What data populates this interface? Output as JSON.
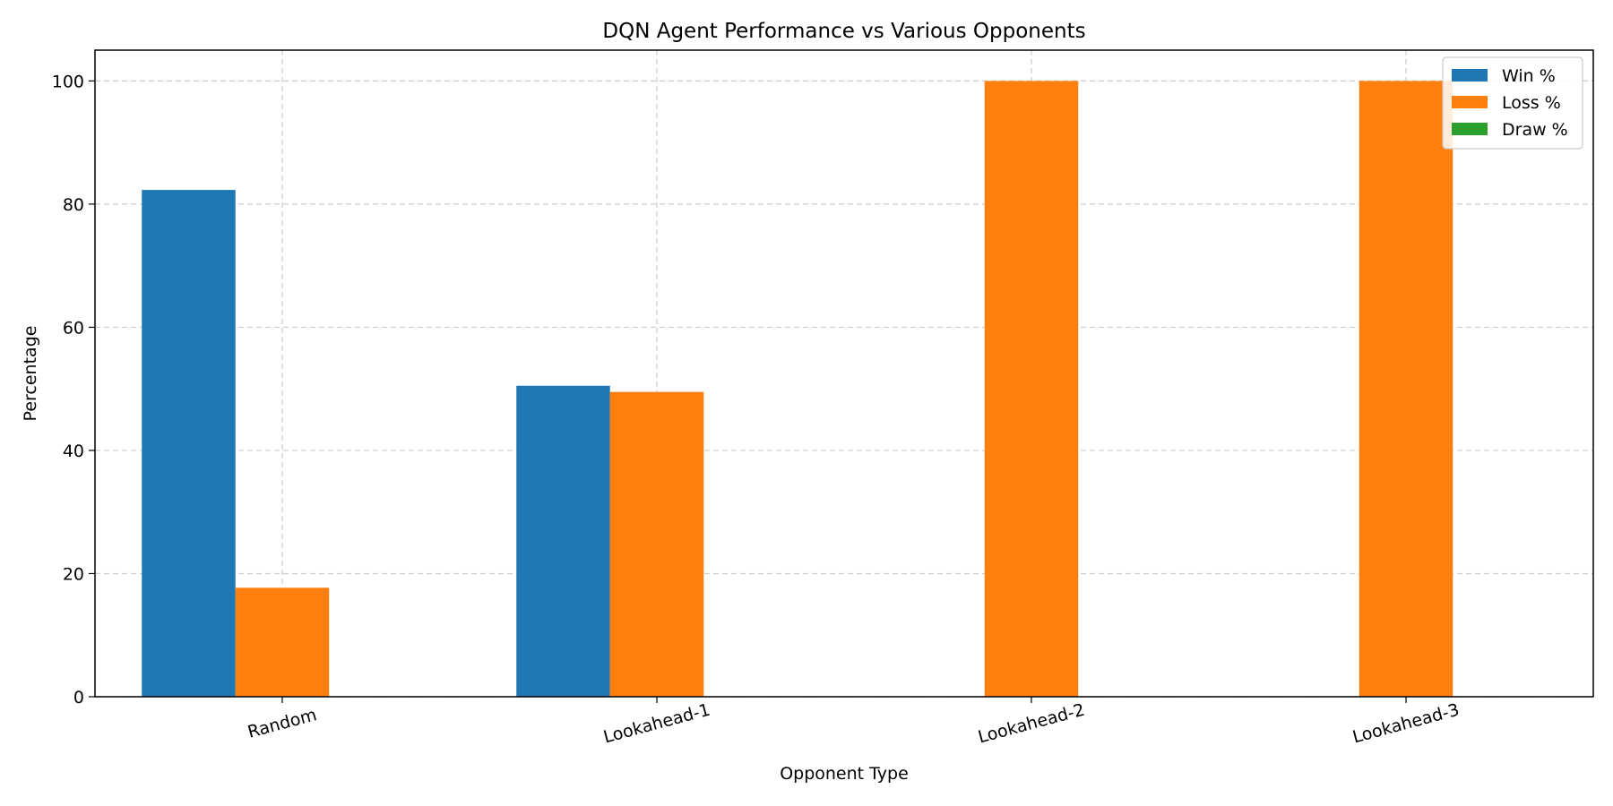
{
  "chart_data": {
    "type": "bar",
    "title": "DQN Agent Performance vs Various Opponents",
    "xlabel": "Opponent Type",
    "ylabel": "Percentage",
    "categories": [
      "Random",
      "Lookahead-1",
      "Lookahead-2",
      "Lookahead-3"
    ],
    "series": [
      {
        "name": "Win %",
        "color": "#1f77b4",
        "values": [
          82.3,
          50.5,
          0,
          0
        ]
      },
      {
        "name": "Loss %",
        "color": "#ff7f0e",
        "values": [
          17.7,
          49.5,
          100,
          100
        ]
      },
      {
        "name": "Draw %",
        "color": "#2ca02c",
        "values": [
          0,
          0,
          0,
          0
        ]
      }
    ],
    "ylim": [
      0,
      105
    ],
    "yticks": [
      0,
      20,
      40,
      60,
      80,
      100
    ],
    "grid": true,
    "legend_position": "top-right",
    "xtick_rotation": "rotated"
  }
}
